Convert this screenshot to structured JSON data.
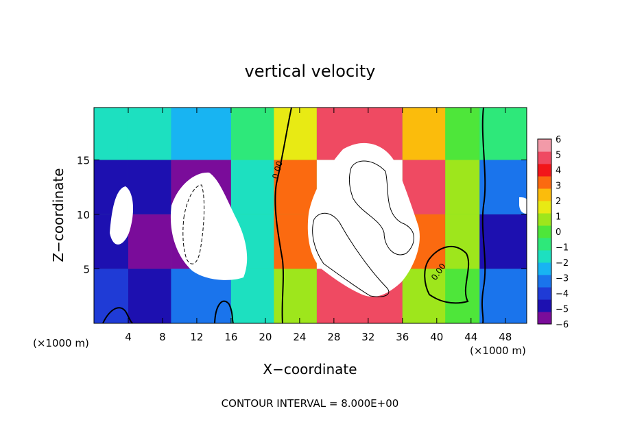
{
  "chart_data": {
    "type": "heatmap",
    "title": "vertical velocity",
    "xlabel": "X−coordinate",
    "ylabel": "Z−coordinate",
    "x_unit_left": "(×1000 m)",
    "x_unit_right": "(×1000 m)",
    "footer": "CONTOUR INTERVAL = 8.000E+00",
    "x_range": [
      0,
      50.5
    ],
    "y_range": [
      0,
      19.8
    ],
    "x_ticks": [
      4,
      8,
      12,
      16,
      20,
      24,
      28,
      32,
      36,
      40,
      44,
      48
    ],
    "y_ticks": [
      5,
      10,
      15
    ],
    "colorbar": {
      "range": [
        -6,
        6
      ],
      "ticks": [
        "6",
        "5",
        "4",
        "3",
        "2",
        "1",
        "0",
        "−1",
        "−2",
        "−3",
        "−4",
        "−5",
        "−6"
      ],
      "colors": [
        "#7a0c9a",
        "#1d10b0",
        "#1f3bd6",
        "#1a74ec",
        "#18b4f2",
        "#1de0c0",
        "#2ee87a",
        "#4ee63a",
        "#9ee61c",
        "#e8ea14",
        "#fbbc0c",
        "#fb6a10",
        "#f2161a",
        "#ef4a62",
        "#f29aa8"
      ]
    },
    "contour_labels": [
      {
        "text": "0.00",
        "x": 21.2,
        "y": 13.3
      },
      {
        "text": "0.00",
        "x": 40.0,
        "y": 5.2
      }
    ],
    "cells": [
      {
        "x0": 0,
        "x1": 4,
        "z0": 0,
        "z1": 5,
        "w": -4
      },
      {
        "x0": 0,
        "x1": 4,
        "z0": 5,
        "z1": 10,
        "w": -5
      },
      {
        "x0": 0,
        "x1": 4,
        "z0": 10,
        "z1": 15,
        "w": -4.5
      },
      {
        "x0": 0,
        "x1": 4,
        "z0": 15,
        "z1": 19.8,
        "w": -1.5
      },
      {
        "x0": 4,
        "x1": 9,
        "z0": 0,
        "z1": 5,
        "w": -4.5
      },
      {
        "x0": 4,
        "x1": 9,
        "z0": 5,
        "z1": 10,
        "w": -5.5
      },
      {
        "x0": 4,
        "x1": 9,
        "z0": 10,
        "z1": 15,
        "w": -5
      },
      {
        "x0": 4,
        "x1": 9,
        "z0": 15,
        "z1": 19.8,
        "w": -2
      },
      {
        "x0": 9,
        "x1": 16,
        "z0": 0,
        "z1": 5,
        "w": -3.5
      },
      {
        "x0": 9,
        "x1": 16,
        "z0": 5,
        "z1": 10,
        "w": -6.5
      },
      {
        "x0": 9,
        "x1": 16,
        "z0": 10,
        "z1": 15,
        "w": -5.5
      },
      {
        "x0": 9,
        "x1": 16,
        "z0": 15,
        "z1": 19.8,
        "w": -2.5
      },
      {
        "x0": 16,
        "x1": 21,
        "z0": 0,
        "z1": 5,
        "w": -1.5
      },
      {
        "x0": 16,
        "x1": 21,
        "z0": 5,
        "z1": 10,
        "w": -2
      },
      {
        "x0": 16,
        "x1": 21,
        "z0": 10,
        "z1": 15,
        "w": -1.5
      },
      {
        "x0": 16,
        "x1": 21,
        "z0": 15,
        "z1": 19.8,
        "w": -0.5
      },
      {
        "x0": 21,
        "x1": 26,
        "z0": 0,
        "z1": 5,
        "w": 1
      },
      {
        "x0": 21,
        "x1": 26,
        "z0": 5,
        "z1": 10,
        "w": 3
      },
      {
        "x0": 21,
        "x1": 26,
        "z0": 10,
        "z1": 15,
        "w": 3
      },
      {
        "x0": 21,
        "x1": 26,
        "z0": 15,
        "z1": 19.8,
        "w": 1.5
      },
      {
        "x0": 26,
        "x1": 36,
        "z0": 0,
        "z1": 5,
        "w": 5
      },
      {
        "x0": 26,
        "x1": 36,
        "z0": 5,
        "z1": 10,
        "w": 7
      },
      {
        "x0": 26,
        "x1": 36,
        "z0": 10,
        "z1": 15,
        "w": 7
      },
      {
        "x0": 26,
        "x1": 36,
        "z0": 15,
        "z1": 19.8,
        "w": 5
      },
      {
        "x0": 36,
        "x1": 41,
        "z0": 0,
        "z1": 5,
        "w": 1
      },
      {
        "x0": 36,
        "x1": 41,
        "z0": 5,
        "z1": 10,
        "w": 3
      },
      {
        "x0": 36,
        "x1": 41,
        "z0": 10,
        "z1": 15,
        "w": 4.5
      },
      {
        "x0": 36,
        "x1": 41,
        "z0": 15,
        "z1": 19.8,
        "w": 2
      },
      {
        "x0": 41,
        "x1": 45,
        "z0": 0,
        "z1": 5,
        "w": 0
      },
      {
        "x0": 41,
        "x1": 45,
        "z0": 5,
        "z1": 10,
        "w": 0.5
      },
      {
        "x0": 41,
        "x1": 45,
        "z0": 10,
        "z1": 15,
        "w": 0.5
      },
      {
        "x0": 41,
        "x1": 45,
        "z0": 15,
        "z1": 19.8,
        "w": 0
      },
      {
        "x0": 45,
        "x1": 50.5,
        "z0": 0,
        "z1": 5,
        "w": -3
      },
      {
        "x0": 45,
        "x1": 50.5,
        "z0": 5,
        "z1": 10,
        "w": -4.5
      },
      {
        "x0": 45,
        "x1": 50.5,
        "z0": 10,
        "z1": 15,
        "w": -3.5
      },
      {
        "x0": 45,
        "x1": 50.5,
        "z0": 15,
        "z1": 19.8,
        "w": -1
      }
    ]
  }
}
